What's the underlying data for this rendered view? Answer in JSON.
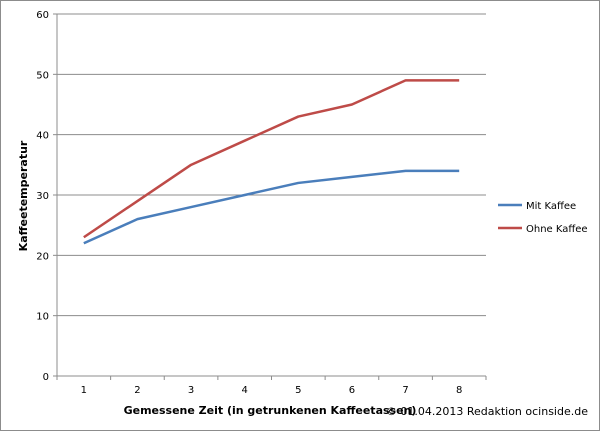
{
  "chart_data": {
    "type": "line",
    "xlabel": "Gemessene Zeit (in getrunkenen Kaffeetassen)",
    "ylabel": "Kaffeetemperatur",
    "categories": [
      "1",
      "2",
      "3",
      "4",
      "5",
      "6",
      "7",
      "8"
    ],
    "ylim": [
      0,
      60
    ],
    "yticks": [
      0,
      10,
      20,
      30,
      40,
      50,
      60
    ],
    "grid": true,
    "legend_position": "right",
    "series": [
      {
        "name": "Mit Kaffee",
        "color": "#4a7ebb",
        "values": [
          22,
          26,
          28,
          30,
          32,
          33,
          34,
          34
        ]
      },
      {
        "name": "Ohne Kaffee",
        "color": "#be4b48",
        "values": [
          23,
          29,
          35,
          39,
          43,
          45,
          49,
          49
        ]
      }
    ]
  },
  "footer": {
    "copyright": "© 01.04.2013 Redaktion ocinside.de"
  }
}
